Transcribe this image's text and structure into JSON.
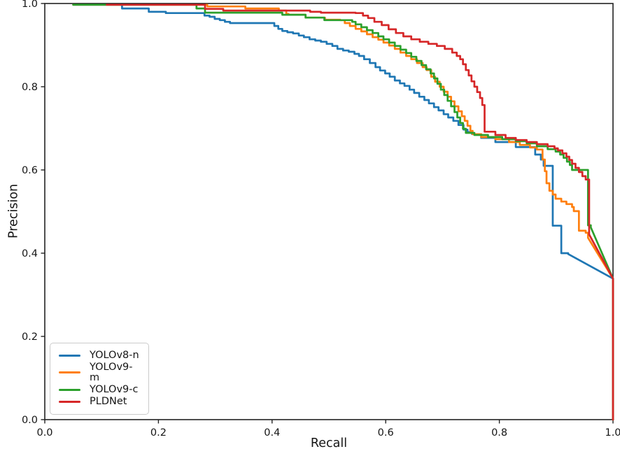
{
  "chart_data": {
    "type": "line",
    "subtype": "precision-recall-curves",
    "title": "",
    "xlabel": "Recall",
    "ylabel": "Precision",
    "xlim": [
      0.0,
      1.0
    ],
    "ylim": [
      0.0,
      1.0
    ],
    "xticks": [
      "0.0",
      "0.2",
      "0.4",
      "0.6",
      "0.8",
      "1.0"
    ],
    "yticks": [
      "0.0",
      "0.2",
      "0.4",
      "0.6",
      "0.8",
      "1.0"
    ],
    "grid": false,
    "spine_color": "#222222",
    "legend_position": "lower left",
    "series": [
      {
        "name": "YOLOv8-n",
        "color": "#1f77b4",
        "style": "step",
        "points": [
          [
            0.05,
            0.997
          ],
          [
            0.136,
            0.997
          ],
          [
            0.136,
            0.988
          ],
          [
            0.183,
            0.988
          ],
          [
            0.183,
            0.98
          ],
          [
            0.213,
            0.98
          ],
          [
            0.213,
            0.977
          ],
          [
            0.275,
            0.977
          ],
          [
            0.281,
            0.971
          ],
          [
            0.29,
            0.968
          ],
          [
            0.299,
            0.963
          ],
          [
            0.308,
            0.96
          ],
          [
            0.317,
            0.956
          ],
          [
            0.326,
            0.953
          ],
          [
            0.398,
            0.953
          ],
          [
            0.404,
            0.946
          ],
          [
            0.411,
            0.939
          ],
          [
            0.418,
            0.934
          ],
          [
            0.427,
            0.931
          ],
          [
            0.437,
            0.928
          ],
          [
            0.447,
            0.923
          ],
          [
            0.456,
            0.919
          ],
          [
            0.466,
            0.914
          ],
          [
            0.476,
            0.911
          ],
          [
            0.486,
            0.908
          ],
          [
            0.496,
            0.903
          ],
          [
            0.506,
            0.898
          ],
          [
            0.515,
            0.891
          ],
          [
            0.525,
            0.887
          ],
          [
            0.535,
            0.884
          ],
          [
            0.545,
            0.879
          ],
          [
            0.553,
            0.874
          ],
          [
            0.562,
            0.866
          ],
          [
            0.572,
            0.857
          ],
          [
            0.582,
            0.847
          ],
          [
            0.59,
            0.839
          ],
          [
            0.599,
            0.832
          ],
          [
            0.607,
            0.824
          ],
          [
            0.616,
            0.815
          ],
          [
            0.625,
            0.808
          ],
          [
            0.633,
            0.802
          ],
          [
            0.642,
            0.793
          ],
          [
            0.65,
            0.785
          ],
          [
            0.659,
            0.776
          ],
          [
            0.668,
            0.768
          ],
          [
            0.676,
            0.76
          ],
          [
            0.685,
            0.751
          ],
          [
            0.693,
            0.743
          ],
          [
            0.702,
            0.734
          ],
          [
            0.71,
            0.726
          ],
          [
            0.719,
            0.718
          ],
          [
            0.728,
            0.708
          ],
          [
            0.737,
            0.697
          ],
          [
            0.744,
            0.691
          ],
          [
            0.752,
            0.686
          ],
          [
            0.768,
            0.677
          ],
          [
            0.793,
            0.667
          ],
          [
            0.829,
            0.655
          ],
          [
            0.863,
            0.649
          ],
          [
            0.863,
            0.637
          ],
          [
            0.873,
            0.637
          ],
          [
            0.873,
            0.625
          ],
          [
            0.878,
            0.625
          ],
          [
            0.878,
            0.61
          ],
          [
            0.891,
            0.61
          ],
          [
            0.894,
            0.592
          ],
          [
            0.894,
            0.466
          ],
          [
            0.909,
            0.462
          ],
          [
            0.909,
            0.4
          ],
          [
            0.921,
            0.398
          ],
          [
            1.0,
            0.339
          ],
          [
            1.0,
            0.0
          ]
        ]
      },
      {
        "name": "YOLOv9-m",
        "color": "#ff7f0e",
        "style": "step",
        "points": [
          [
            0.05,
            0.997
          ],
          [
            0.286,
            0.997
          ],
          [
            0.286,
            0.993
          ],
          [
            0.353,
            0.993
          ],
          [
            0.353,
            0.988
          ],
          [
            0.407,
            0.988
          ],
          [
            0.412,
            0.983
          ],
          [
            0.425,
            0.975
          ],
          [
            0.429,
            0.973
          ],
          [
            0.459,
            0.971
          ],
          [
            0.459,
            0.966
          ],
          [
            0.493,
            0.966
          ],
          [
            0.493,
            0.961
          ],
          [
            0.52,
            0.96
          ],
          [
            0.528,
            0.953
          ],
          [
            0.537,
            0.946
          ],
          [
            0.547,
            0.939
          ],
          [
            0.557,
            0.933
          ],
          [
            0.567,
            0.926
          ],
          [
            0.577,
            0.919
          ],
          [
            0.587,
            0.913
          ],
          [
            0.596,
            0.906
          ],
          [
            0.606,
            0.899
          ],
          [
            0.616,
            0.891
          ],
          [
            0.626,
            0.882
          ],
          [
            0.636,
            0.874
          ],
          [
            0.645,
            0.866
          ],
          [
            0.655,
            0.857
          ],
          [
            0.665,
            0.847
          ],
          [
            0.672,
            0.84
          ],
          [
            0.68,
            0.824
          ],
          [
            0.687,
            0.812
          ],
          [
            0.695,
            0.8
          ],
          [
            0.702,
            0.788
          ],
          [
            0.709,
            0.776
          ],
          [
            0.715,
            0.765
          ],
          [
            0.721,
            0.753
          ],
          [
            0.728,
            0.741
          ],
          [
            0.734,
            0.729
          ],
          [
            0.739,
            0.718
          ],
          [
            0.744,
            0.706
          ],
          [
            0.749,
            0.694
          ],
          [
            0.753,
            0.686
          ],
          [
            0.768,
            0.679
          ],
          [
            0.793,
            0.674
          ],
          [
            0.817,
            0.667
          ],
          [
            0.836,
            0.66
          ],
          [
            0.854,
            0.654
          ],
          [
            0.866,
            0.649
          ],
          [
            0.876,
            0.645
          ],
          [
            0.876,
            0.625
          ],
          [
            0.88,
            0.625
          ],
          [
            0.88,
            0.597
          ],
          [
            0.883,
            0.597
          ],
          [
            0.883,
            0.568
          ],
          [
            0.888,
            0.568
          ],
          [
            0.888,
            0.55
          ],
          [
            0.894,
            0.541
          ],
          [
            0.899,
            0.531
          ],
          [
            0.909,
            0.524
          ],
          [
            0.918,
            0.518
          ],
          [
            0.928,
            0.511
          ],
          [
            0.931,
            0.501
          ],
          [
            0.94,
            0.501
          ],
          [
            0.94,
            0.454
          ],
          [
            0.952,
            0.449
          ],
          [
            0.956,
            0.437
          ],
          [
            1.0,
            0.339
          ],
          [
            1.0,
            0.0
          ]
        ]
      },
      {
        "name": "YOLOv9-c",
        "color": "#2ca02c",
        "style": "step",
        "points": [
          [
            0.05,
            0.997
          ],
          [
            0.267,
            0.997
          ],
          [
            0.267,
            0.988
          ],
          [
            0.282,
            0.988
          ],
          [
            0.282,
            0.978
          ],
          [
            0.418,
            0.978
          ],
          [
            0.418,
            0.973
          ],
          [
            0.459,
            0.973
          ],
          [
            0.459,
            0.966
          ],
          [
            0.492,
            0.966
          ],
          [
            0.492,
            0.96
          ],
          [
            0.541,
            0.956
          ],
          [
            0.547,
            0.95
          ],
          [
            0.557,
            0.943
          ],
          [
            0.567,
            0.936
          ],
          [
            0.577,
            0.929
          ],
          [
            0.587,
            0.921
          ],
          [
            0.596,
            0.914
          ],
          [
            0.606,
            0.906
          ],
          [
            0.616,
            0.898
          ],
          [
            0.626,
            0.889
          ],
          [
            0.636,
            0.881
          ],
          [
            0.645,
            0.872
          ],
          [
            0.654,
            0.862
          ],
          [
            0.663,
            0.852
          ],
          [
            0.671,
            0.842
          ],
          [
            0.679,
            0.832
          ],
          [
            0.685,
            0.82
          ],
          [
            0.691,
            0.807
          ],
          [
            0.697,
            0.793
          ],
          [
            0.703,
            0.78
          ],
          [
            0.709,
            0.766
          ],
          [
            0.715,
            0.753
          ],
          [
            0.721,
            0.739
          ],
          [
            0.726,
            0.726
          ],
          [
            0.731,
            0.713
          ],
          [
            0.736,
            0.699
          ],
          [
            0.741,
            0.689
          ],
          [
            0.756,
            0.684
          ],
          [
            0.78,
            0.679
          ],
          [
            0.805,
            0.674
          ],
          [
            0.829,
            0.669
          ],
          [
            0.848,
            0.664
          ],
          [
            0.866,
            0.657
          ],
          [
            0.885,
            0.65
          ],
          [
            0.899,
            0.644
          ],
          [
            0.907,
            0.637
          ],
          [
            0.913,
            0.629
          ],
          [
            0.919,
            0.62
          ],
          [
            0.924,
            0.612
          ],
          [
            0.928,
            0.6
          ],
          [
            0.956,
            0.6
          ],
          [
            0.956,
            0.467
          ],
          [
            0.961,
            0.462
          ],
          [
            1.0,
            0.339
          ],
          [
            1.0,
            0.0
          ]
        ]
      },
      {
        "name": "PLDNet",
        "color": "#d62728",
        "style": "step",
        "points": [
          [
            0.109,
            0.997
          ],
          [
            0.282,
            0.997
          ],
          [
            0.282,
            0.987
          ],
          [
            0.314,
            0.987
          ],
          [
            0.314,
            0.983
          ],
          [
            0.467,
            0.98
          ],
          [
            0.486,
            0.978
          ],
          [
            0.547,
            0.977
          ],
          [
            0.56,
            0.971
          ],
          [
            0.569,
            0.965
          ],
          [
            0.58,
            0.956
          ],
          [
            0.593,
            0.948
          ],
          [
            0.605,
            0.938
          ],
          [
            0.618,
            0.929
          ],
          [
            0.631,
            0.921
          ],
          [
            0.645,
            0.914
          ],
          [
            0.66,
            0.908
          ],
          [
            0.675,
            0.903
          ],
          [
            0.69,
            0.898
          ],
          [
            0.704,
            0.891
          ],
          [
            0.717,
            0.882
          ],
          [
            0.725,
            0.874
          ],
          [
            0.731,
            0.866
          ],
          [
            0.736,
            0.854
          ],
          [
            0.741,
            0.84
          ],
          [
            0.746,
            0.827
          ],
          [
            0.751,
            0.813
          ],
          [
            0.756,
            0.8
          ],
          [
            0.761,
            0.787
          ],
          [
            0.766,
            0.773
          ],
          [
            0.77,
            0.756
          ],
          [
            0.774,
            0.731
          ],
          [
            0.774,
            0.692
          ],
          [
            0.793,
            0.684
          ],
          [
            0.811,
            0.677
          ],
          [
            0.829,
            0.672
          ],
          [
            0.848,
            0.667
          ],
          [
            0.866,
            0.662
          ],
          [
            0.885,
            0.657
          ],
          [
            0.897,
            0.652
          ],
          [
            0.903,
            0.647
          ],
          [
            0.911,
            0.64
          ],
          [
            0.918,
            0.632
          ],
          [
            0.923,
            0.624
          ],
          [
            0.928,
            0.615
          ],
          [
            0.934,
            0.605
          ],
          [
            0.94,
            0.595
          ],
          [
            0.946,
            0.585
          ],
          [
            0.952,
            0.577
          ],
          [
            0.958,
            0.566
          ],
          [
            0.958,
            0.445
          ],
          [
            1.0,
            0.339
          ],
          [
            1.0,
            0.0
          ]
        ]
      }
    ]
  },
  "axes": {
    "xlabel": "Recall",
    "ylabel": "Precision"
  },
  "legend": {
    "labels": [
      "YOLOv8-n",
      "YOLOv9-m",
      "YOLOv9-c",
      "PLDNet"
    ]
  }
}
